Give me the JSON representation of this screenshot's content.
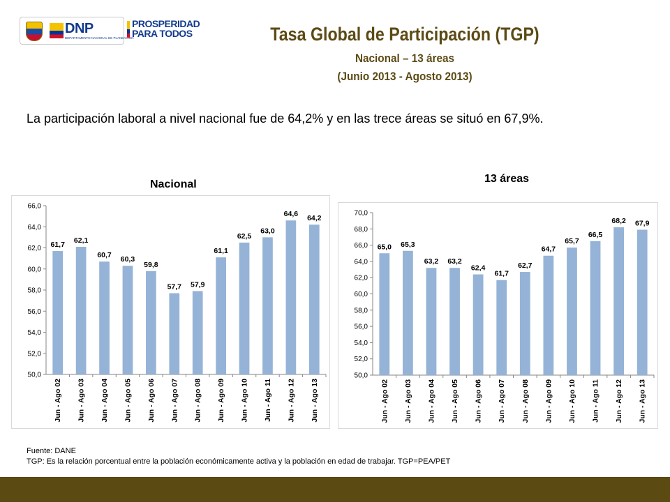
{
  "header": {
    "logo_dnp": "DNP",
    "logo_dnp_sub": "DEPARTAMENTO NACIONAL DE PLANEACIÓN",
    "logo_prosperidad": "PROSPERIDAD\nPARA TODOS",
    "title": "Tasa Global de Participación (TGP)",
    "subtitle_1": "Nacional – 13 áreas",
    "subtitle_2": "(Junio 2013 - Agosto 2013)"
  },
  "intro": "La participación laboral a nivel nacional fue de 64,2% y en las trece áreas se situó en 67,9%.",
  "chart_data": [
    {
      "type": "bar",
      "title": "Nacional",
      "categories": [
        "Jun - Ago 02",
        "Jun - Ago 03",
        "Jun - Ago 04",
        "Jun - Ago 05",
        "Jun - Ago 06",
        "Jun - Ago 07",
        "Jun - Ago 08",
        "Jun - Ago 09",
        "Jun - Ago 10",
        "Jun - Ago 11",
        "Jun - Ago 12",
        "Jun - Ago 13"
      ],
      "values": [
        61.7,
        62.1,
        60.7,
        60.3,
        59.8,
        57.7,
        57.9,
        61.1,
        62.5,
        63.0,
        64.6,
        64.2
      ],
      "value_labels": [
        "61,7",
        "62,1",
        "60,7",
        "60,3",
        "59,8",
        "57,7",
        "57,9",
        "61,1",
        "62,5",
        "63,0",
        "64,6",
        "64,2"
      ],
      "ylim": [
        50,
        66
      ],
      "yticks": [
        "50,0",
        "52,0",
        "54,0",
        "56,0",
        "58,0",
        "60,0",
        "62,0",
        "64,0",
        "66,0"
      ],
      "grid": false,
      "bar_color": "#95b3d7"
    },
    {
      "type": "bar",
      "title": "13 áreas",
      "categories": [
        "Jun - Ago 02",
        "Jun - Ago 03",
        "Jun - Ago 04",
        "Jun - Ago 05",
        "Jun - Ago 06",
        "Jun - Ago 07",
        "Jun - Ago 08",
        "Jun - Ago 09",
        "Jun - Ago 10",
        "Jun - Ago 11",
        "Jun - Ago 12",
        "Jun - Ago 13"
      ],
      "values": [
        65.0,
        65.3,
        63.2,
        63.2,
        62.4,
        61.7,
        62.7,
        64.7,
        65.7,
        66.5,
        68.2,
        67.9
      ],
      "value_labels": [
        "65,0",
        "65,3",
        "63,2",
        "63,2",
        "62,4",
        "61,7",
        "62,7",
        "64,7",
        "65,7",
        "66,5",
        "68,2",
        "67,9"
      ],
      "ylim": [
        50,
        70
      ],
      "yticks": [
        "50,0",
        "52,0",
        "54,0",
        "56,0",
        "58,0",
        "60,0",
        "62,0",
        "64,0",
        "66,0",
        "68,0",
        "70,0"
      ],
      "grid": false,
      "bar_color": "#95b3d7"
    }
  ],
  "notes": {
    "source": "Fuente: DANE",
    "definition": "TGP:  Es la relación porcentual entre la población económicamente activa y la población  en edad de trabajar. TGP=PEA/PET"
  },
  "colors": {
    "title": "#5b4a14",
    "footer": "#5b4a12"
  }
}
